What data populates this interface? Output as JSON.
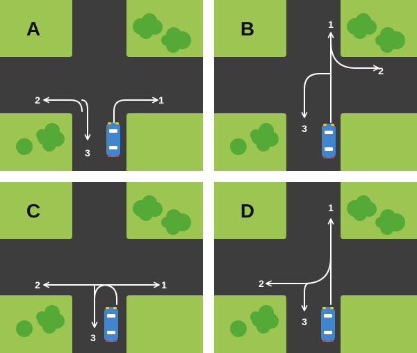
{
  "colors": {
    "road": "#3d3d3d",
    "grass": "#9dc552",
    "bush": "#55aa37",
    "arrow": "#ffffff",
    "car_body": "#3f86cf",
    "car_window": "#ffffff",
    "headlight": "#f2c531",
    "taillight": "#d23b3b",
    "letter": "#111111",
    "background": "#ffffff"
  },
  "icons": {
    "car": "car-top-view-icon",
    "bush": "bush-icon"
  },
  "panels": [
    {
      "letter": "A",
      "arrows": [
        {
          "label": "1"
        },
        {
          "label": "2"
        },
        {
          "label": "3"
        }
      ]
    },
    {
      "letter": "B",
      "arrows": [
        {
          "label": "1"
        },
        {
          "label": "2"
        },
        {
          "label": "3"
        }
      ]
    },
    {
      "letter": "C",
      "arrows": [
        {
          "label": "1"
        },
        {
          "label": "2"
        },
        {
          "label": "3"
        }
      ]
    },
    {
      "letter": "D",
      "arrows": [
        {
          "label": "1"
        },
        {
          "label": "2"
        },
        {
          "label": "3"
        }
      ]
    }
  ]
}
